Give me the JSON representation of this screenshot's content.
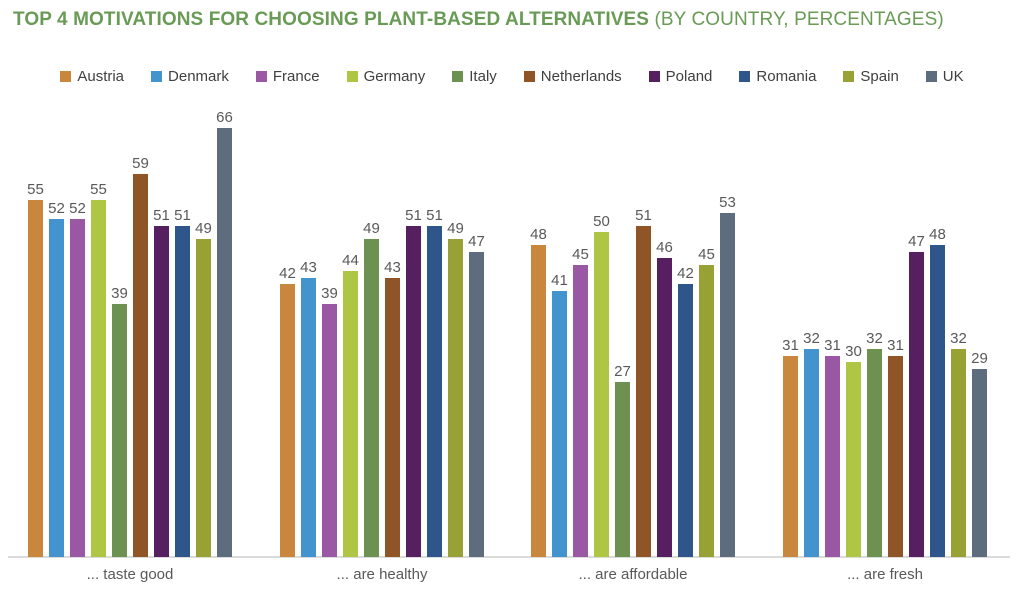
{
  "chart_data": {
    "type": "bar",
    "title": "TOP 4 MOTIVATIONS FOR CHOOSING PLANT-BASED ALTERNATIVES",
    "subtitle": "(BY COUNTRY, PERCENTAGES)",
    "title_color": "#699B56",
    "value_label_color": "#595959",
    "axis_line_color": "#DBDBDB",
    "categories": [
      "... taste good",
      "... are healthy",
      "... are affordable",
      "... are fresh"
    ],
    "series": [
      {
        "name": "Austria",
        "color": "#C9873E",
        "values": [
          55,
          42,
          48,
          31
        ]
      },
      {
        "name": "Denmark",
        "color": "#4293CE",
        "values": [
          52,
          43,
          41,
          32
        ]
      },
      {
        "name": "France",
        "color": "#9A57A3",
        "values": [
          52,
          39,
          45,
          31
        ]
      },
      {
        "name": "Germany",
        "color": "#AFC544",
        "values": [
          55,
          44,
          50,
          30
        ]
      },
      {
        "name": "Italy",
        "color": "#6C9150",
        "values": [
          39,
          49,
          27,
          32
        ]
      },
      {
        "name": "Netherlands",
        "color": "#8F5526",
        "values": [
          59,
          43,
          51,
          31
        ]
      },
      {
        "name": "Poland",
        "color": "#561F5F",
        "values": [
          51,
          51,
          46,
          47
        ]
      },
      {
        "name": "Romania",
        "color": "#2F568B",
        "values": [
          51,
          51,
          42,
          48
        ]
      },
      {
        "name": "Spain",
        "color": "#98A133",
        "values": [
          49,
          49,
          45,
          32
        ]
      },
      {
        "name": "UK",
        "color": "#5D6D7E",
        "values": [
          66,
          47,
          53,
          29
        ]
      }
    ],
    "value_labels": true,
    "legend_position": "top",
    "grid": false,
    "ylim": [
      0,
      70
    ]
  }
}
